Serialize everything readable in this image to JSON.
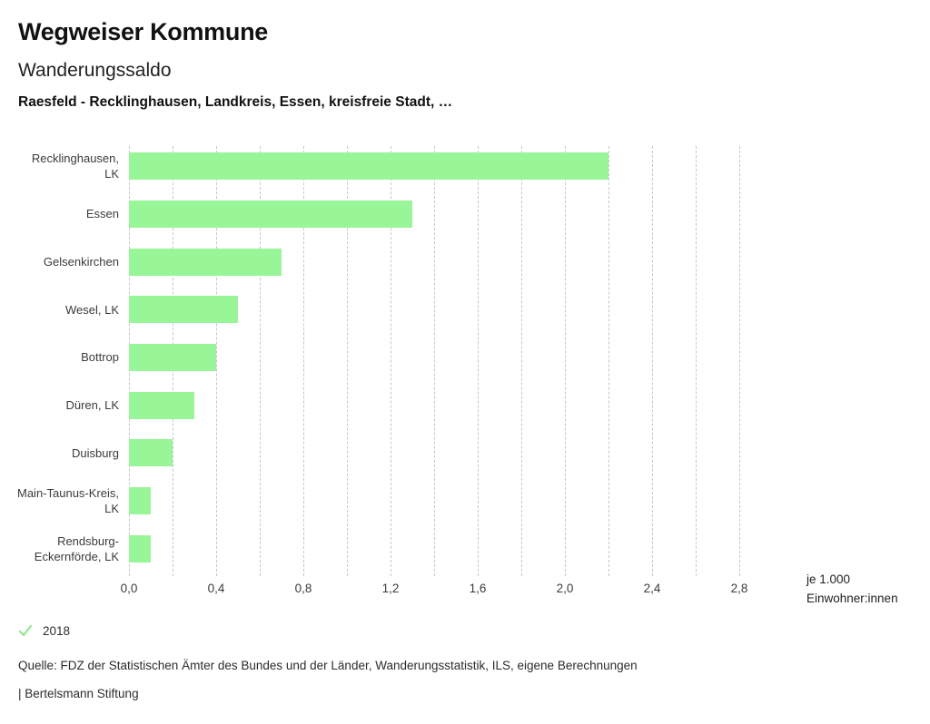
{
  "header": {
    "title": "Wegweiser Kommune",
    "subtitle": "Wanderungssaldo",
    "region_line": "Raesfeld - Recklinghausen, Landkreis, Essen, kreisfreie Stadt, …"
  },
  "chart_data": {
    "type": "bar",
    "orientation": "horizontal",
    "categories": [
      "Recklinghausen, LK",
      "Essen",
      "Gelsenkirchen",
      "Wesel, LK",
      "Bottrop",
      "Düren, LK",
      "Duisburg",
      "Main-Taunus-Kreis, LK",
      "Rendsburg-Eckernförde, LK"
    ],
    "values": [
      2.2,
      1.3,
      0.7,
      0.5,
      0.4,
      0.3,
      0.2,
      0.1,
      0.1
    ],
    "xlim": [
      0,
      2.8
    ],
    "grid_step": 0.2,
    "grid_style": "dashed-vertical",
    "x_ticks": [
      "0,0",
      "0,4",
      "0,8",
      "1,2",
      "1,6",
      "2,0",
      "2,4",
      "2,8"
    ],
    "x_tick_values": [
      0,
      0.4,
      0.8,
      1.2,
      1.6,
      2.0,
      2.4,
      2.8
    ],
    "unit_label_line1": "je 1.000",
    "unit_label_line2": "Einwohner:innen",
    "bar_color": "#98f598",
    "gridline_color": "#c6c6c6",
    "legend_year": "2018",
    "legend_check_color": "#8ee68e"
  },
  "footer": {
    "source": "Quelle: FDZ der Statistischen Ämter des Bundes und der Länder, Wanderungsstatistik, ILS, eigene Berechnungen",
    "attribution": "| Bertelsmann Stiftung"
  }
}
